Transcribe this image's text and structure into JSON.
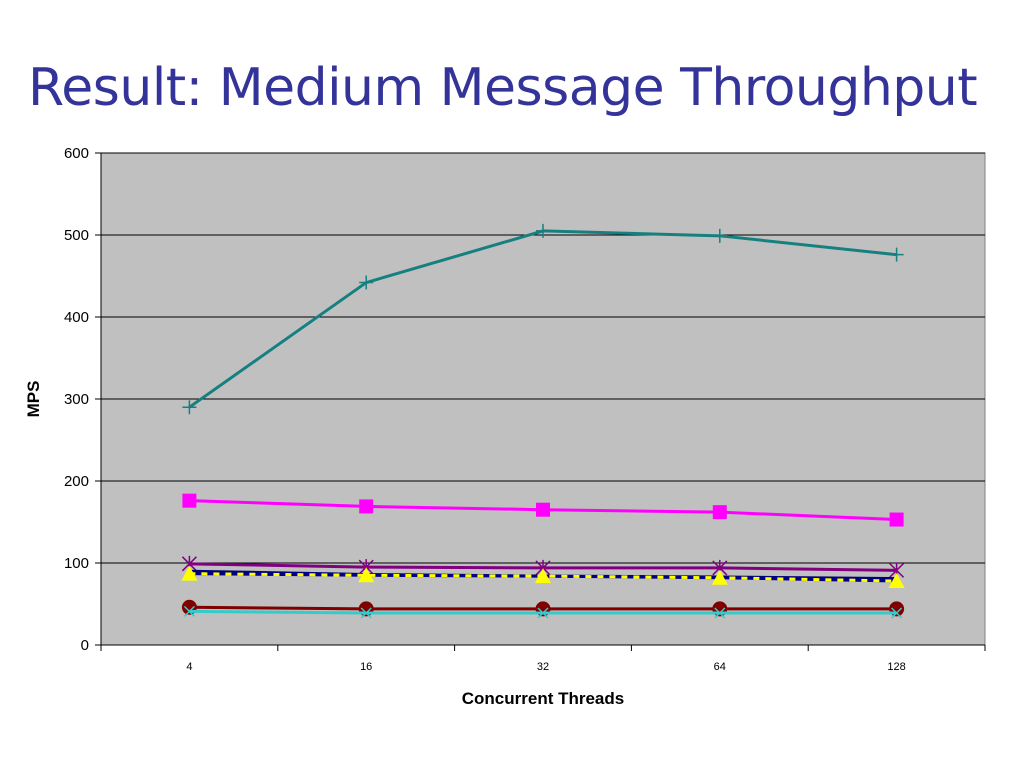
{
  "slide": {
    "title": "Result: Medium Message Throughput"
  },
  "chart_data": {
    "type": "line",
    "title": "",
    "xlabel": "Concurrent Threads",
    "ylabel": "MPS",
    "categories": [
      "4",
      "16",
      "32",
      "64",
      "128"
    ],
    "ylim": [
      0,
      600
    ],
    "yticks": [
      0,
      100,
      200,
      300,
      400,
      500,
      600
    ],
    "grid": true,
    "legend": "none",
    "plot_background": "#c0c0c0",
    "series": [
      {
        "values": [
          290,
          442,
          505,
          499,
          476
        ],
        "color": "#168080",
        "marker": "plus",
        "dash": "solid"
      },
      {
        "values": [
          176,
          169,
          165,
          162,
          153
        ],
        "color": "#ff00ff",
        "marker": "square",
        "dash": "solid"
      },
      {
        "values": [
          99,
          95,
          94,
          94,
          91
        ],
        "color": "#800080",
        "marker": "star",
        "dash": "solid"
      },
      {
        "values": [
          90,
          86,
          84,
          83,
          81
        ],
        "color": "#000080",
        "marker": "none",
        "dash": "solid"
      },
      {
        "values": [
          87,
          85,
          84,
          82,
          78
        ],
        "color": "#ffff00",
        "marker": "triangle",
        "dash": "dashed"
      },
      {
        "values": [
          46,
          44,
          44,
          44,
          44
        ],
        "color": "#800000",
        "marker": "circle",
        "dash": "solid"
      },
      {
        "values": [
          41,
          39,
          39,
          39,
          39
        ],
        "color": "#33cccc",
        "marker": "x",
        "dash": "solid"
      }
    ]
  }
}
